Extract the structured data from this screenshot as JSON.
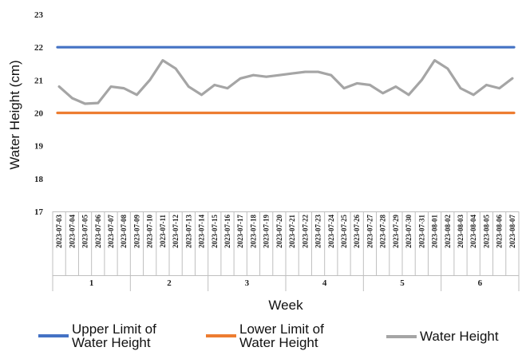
{
  "chart_data": {
    "type": "line",
    "xlabel": "Week",
    "ylabel": "Water Height (cm)",
    "ylim": [
      17,
      23
    ],
    "yticks": [
      "17",
      "18",
      "19",
      "20",
      "21",
      "22",
      "23"
    ],
    "grid": false,
    "legend_position": "bottom",
    "x": [
      "2023-07-03",
      "2023-07-04",
      "2023-07-05",
      "2023-07-06",
      "2023-07-07",
      "2023-07-08",
      "2023-07-09",
      "2023-07-10",
      "2023-07-11",
      "2023-07-12",
      "2023-07-13",
      "2023-07-14",
      "2023-07-15",
      "2023-07-16",
      "2023-07-17",
      "2023-07-18",
      "2023-07-19",
      "2023-07-20",
      "2023-07-21",
      "2023-07-22",
      "2023-07-23",
      "2023-07-24",
      "2023-07-25",
      "2023-07-26",
      "2023-07-27",
      "2023-07-28",
      "2023-07-29",
      "2023-07-30",
      "2023-07-31",
      "2023-08-01",
      "2023-08-02",
      "2023-08-03",
      "2023-08-04",
      "2023-08-05",
      "2023-08-06",
      "2023-08-07"
    ],
    "week_groups": [
      {
        "label": "1",
        "count": 6
      },
      {
        "label": "2",
        "count": 6
      },
      {
        "label": "3",
        "count": 6
      },
      {
        "label": "4",
        "count": 6
      },
      {
        "label": "5",
        "count": 6
      },
      {
        "label": "6",
        "count": 6
      }
    ],
    "series": [
      {
        "name": "Upper Limit of Water Height",
        "color": "#4472c4",
        "values": [
          22,
          22,
          22,
          22,
          22,
          22,
          22,
          22,
          22,
          22,
          22,
          22,
          22,
          22,
          22,
          22,
          22,
          22,
          22,
          22,
          22,
          22,
          22,
          22,
          22,
          22,
          22,
          22,
          22,
          22,
          22,
          22,
          22,
          22,
          22,
          22
        ]
      },
      {
        "name": "Lower Limit of Water Height",
        "color": "#ed7d31",
        "values": [
          20,
          20,
          20,
          20,
          20,
          20,
          20,
          20,
          20,
          20,
          20,
          20,
          20,
          20,
          20,
          20,
          20,
          20,
          20,
          20,
          20,
          20,
          20,
          20,
          20,
          20,
          20,
          20,
          20,
          20,
          20,
          20,
          20,
          20,
          20,
          20
        ]
      },
      {
        "name": "Water Height",
        "color": "#a5a5a5",
        "values": [
          20.8,
          20.45,
          20.28,
          20.3,
          20.8,
          20.75,
          20.55,
          21.0,
          21.6,
          21.35,
          20.8,
          20.55,
          20.85,
          20.75,
          21.05,
          21.15,
          21.1,
          21.15,
          21.2,
          21.25,
          21.25,
          21.15,
          20.75,
          20.9,
          20.85,
          20.6,
          20.8,
          20.55,
          21.0,
          21.6,
          21.35,
          20.75,
          20.55,
          20.85,
          20.75,
          21.05
        ]
      }
    ]
  },
  "legend": {
    "upper_line1": "Upper Limit of",
    "upper_line2": "Water Height",
    "lower_line1": "Lower Limit of",
    "lower_line2": "Water Height",
    "water": "Water Height"
  }
}
